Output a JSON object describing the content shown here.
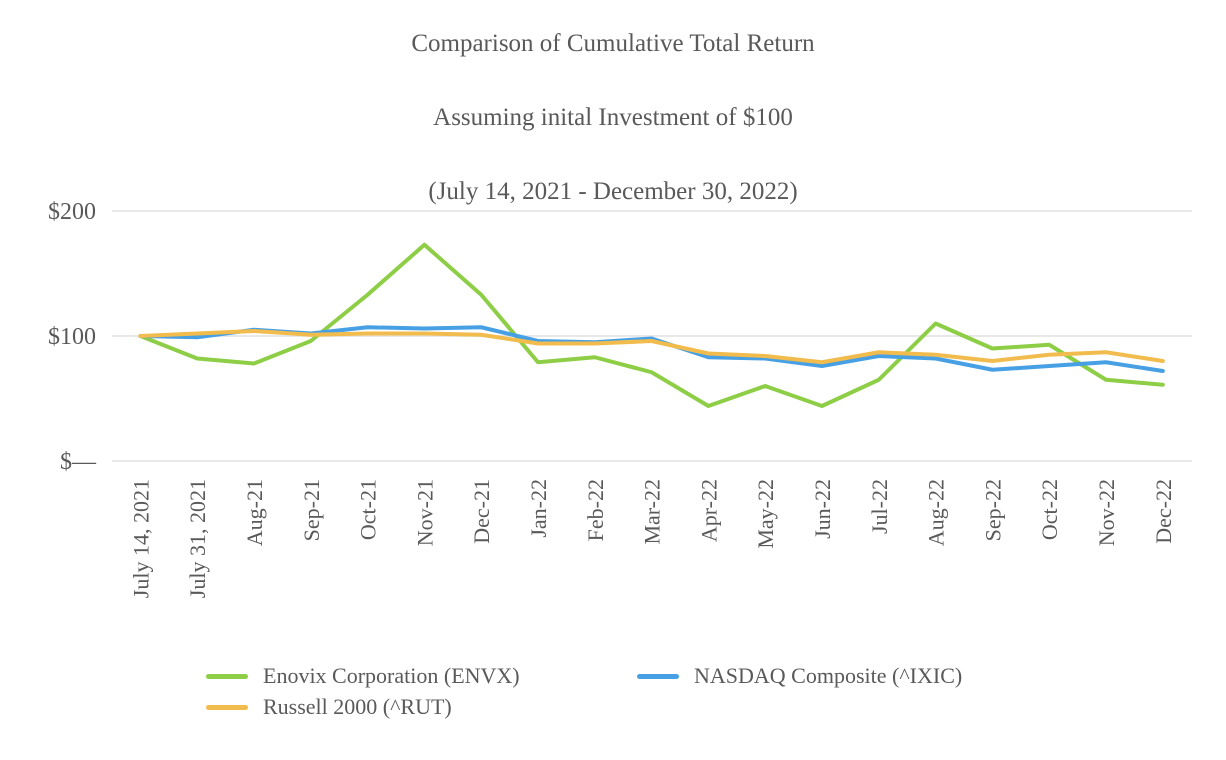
{
  "title": {
    "line1": "Comparison of Cumulative Total Return",
    "line2": "Assuming inital Investment of $100",
    "line3": "(July 14, 2021 - December 30, 2022)"
  },
  "chart_data": {
    "type": "line",
    "title": "Comparison of Cumulative Total Return Assuming inital Investment of $100 (July 14, 2021 - December 30, 2022)",
    "categories": [
      "July 14, 2021",
      "July 31, 2021",
      "Aug-21",
      "Sep-21",
      "Oct-21",
      "Nov-21",
      "Dec-21",
      "Jan-22",
      "Feb-22",
      "Mar-22",
      "Apr-22",
      "May-22",
      "Jun-22",
      "Jul-22",
      "Aug-22",
      "Sep-22",
      "Oct-22",
      "Nov-22",
      "Dec-22"
    ],
    "series": [
      {
        "name": "Enovix Corporation (ENVX)",
        "color": "#8dce46",
        "values": [
          100,
          82,
          78,
          96,
          133,
          173,
          133,
          79,
          83,
          71,
          44,
          60,
          44,
          65,
          110,
          90,
          93,
          65,
          61
        ]
      },
      {
        "name": "NASDAQ Composite (^IXIC)",
        "color": "#47a0e3",
        "values": [
          100,
          99,
          105,
          102,
          107,
          106,
          107,
          96,
          95,
          98,
          83,
          82,
          76,
          84,
          82,
          73,
          76,
          79,
          72
        ]
      },
      {
        "name": "Russell 2000 (^RUT)",
        "color": "#f1bc4d",
        "values": [
          100,
          102,
          104,
          101,
          102,
          102,
          101,
          94,
          94,
          96,
          86,
          84,
          79,
          87,
          85,
          80,
          85,
          87,
          80
        ]
      }
    ],
    "y_axis": {
      "tick_labels": [
        "$—",
        "$100",
        "$200"
      ],
      "tick_values": [
        0,
        100,
        200
      ],
      "ylim": [
        0,
        200
      ]
    },
    "x_axis": {
      "label_rotation_degrees": -90
    },
    "grid": true,
    "legend_position": "bottom"
  },
  "colors": {
    "axis_text": "#595959",
    "title_text": "#595959",
    "gridline": "#e8e8e8",
    "background": "#ffffff"
  }
}
